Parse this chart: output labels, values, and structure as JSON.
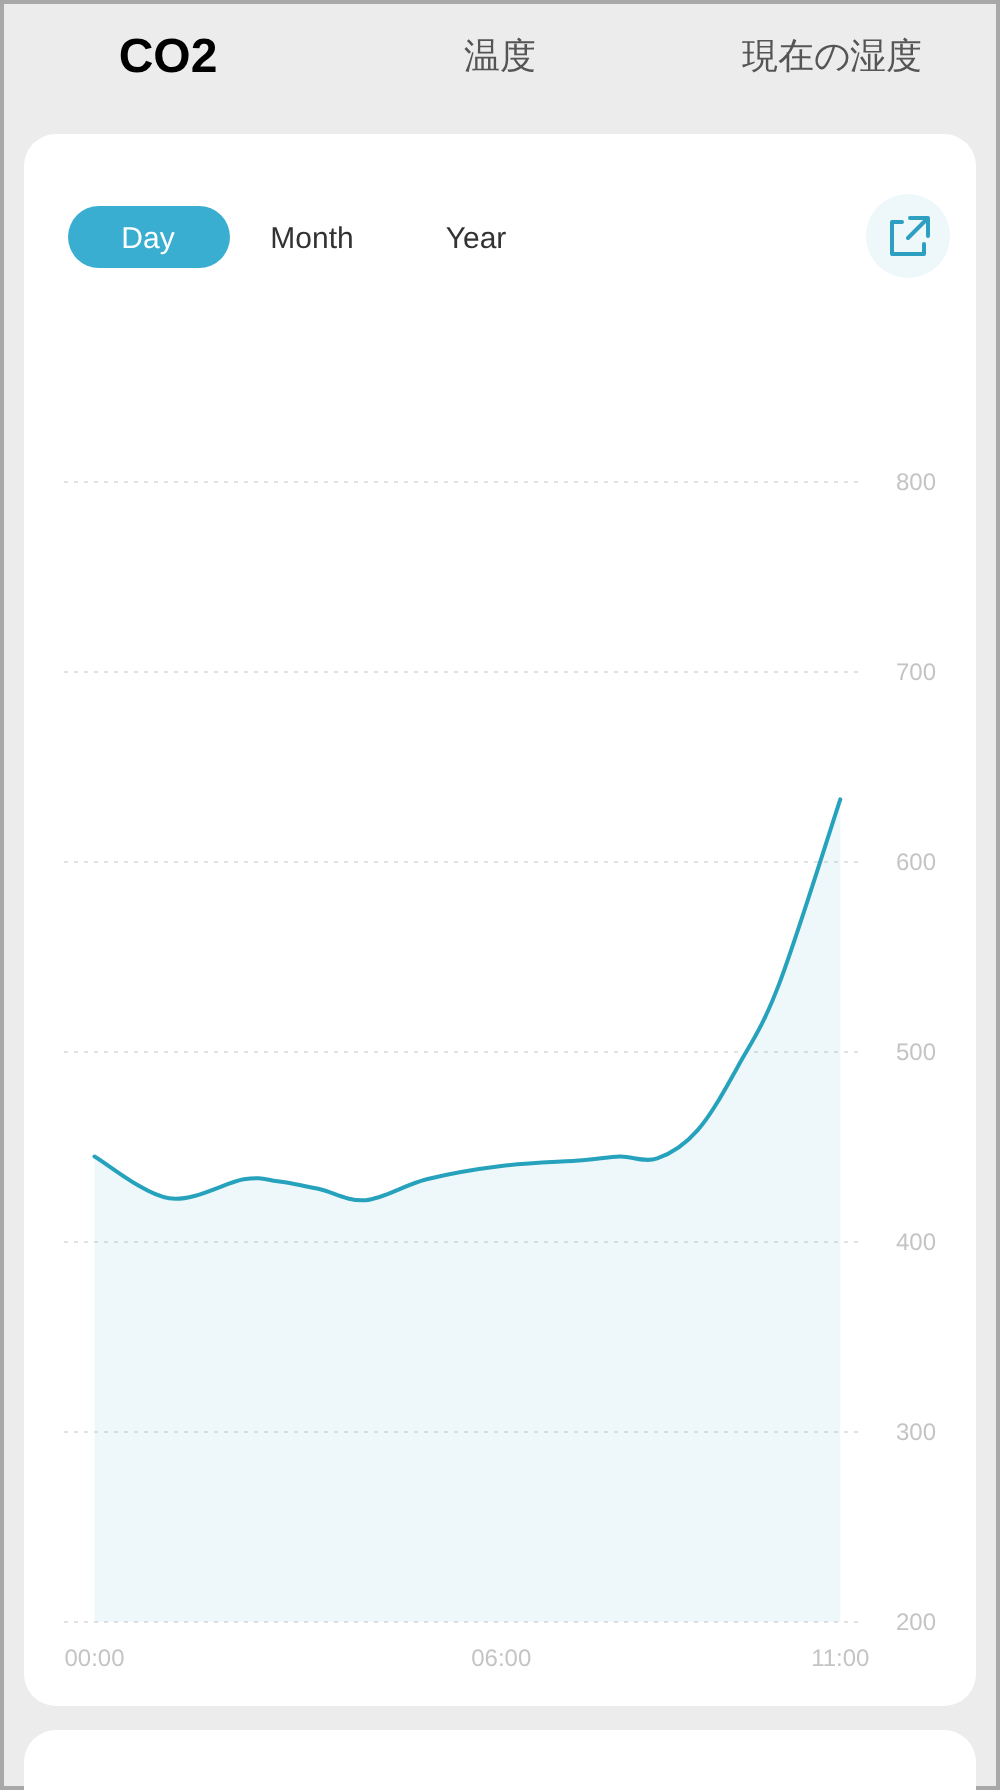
{
  "chart_data": {
    "type": "area",
    "title": "CO2",
    "annotations": [
      "温度",
      "現在の湿度",
      "Day",
      "Month",
      "Year"
    ],
    "x": [
      0,
      1.1,
      2.2,
      2.7,
      3.3,
      4.0,
      4.9,
      6.0,
      7.2,
      7.75,
      8.3,
      8.9,
      9.5,
      10.1,
      11
    ],
    "series": [
      {
        "color": "#27a2bd",
        "values": [
          445,
          423,
          433,
          432,
          428,
          422,
          433,
          440,
          443,
          445,
          444,
          459,
          493,
          536,
          633
        ]
      }
    ],
    "xlim": [
      -0.45,
      11.35
    ],
    "xticks": [
      {
        "value": 0,
        "label": "00:00"
      },
      {
        "value": 6,
        "label": "06:00"
      },
      {
        "value": 11,
        "label": "11:00"
      }
    ],
    "ylim": [
      200,
      800
    ],
    "yticks": [
      200,
      300,
      400,
      500,
      600,
      700,
      800
    ],
    "grid": "y",
    "marker": "none",
    "line_style": "solid"
  }
}
